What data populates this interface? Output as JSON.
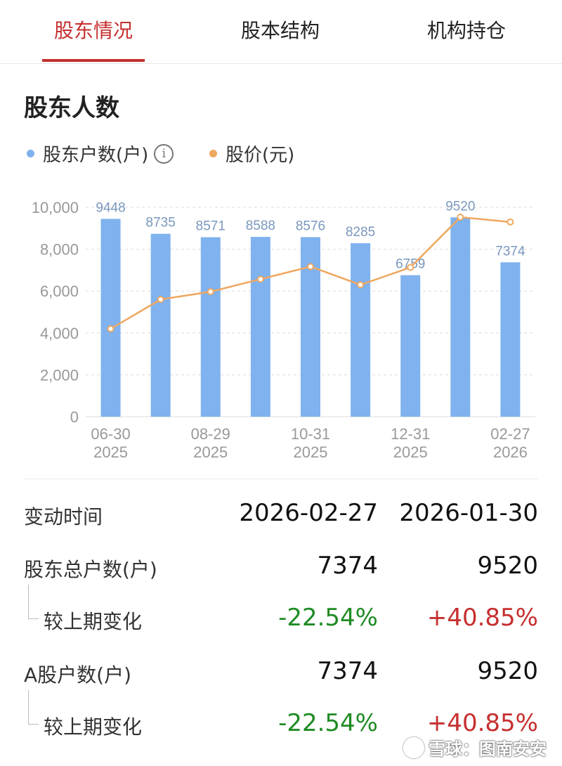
{
  "tabs": [
    {
      "label": "股东情况",
      "active": true
    },
    {
      "label": "股本结构",
      "active": false
    },
    {
      "label": "机构持仓",
      "active": false
    }
  ],
  "section_title": "股东人数",
  "legend": {
    "holders_label": "股东户数(户)",
    "price_label": "股价(元)",
    "info_icon": "info-icon",
    "info_glyph": "i"
  },
  "colors": {
    "accent_red": "#c62f2f",
    "bar_blue": "#7fb2ee",
    "line_orange": "#efa761",
    "negative_green": "#1f8b24"
  },
  "chart_data": {
    "type": "bar",
    "x_tick_labels": [
      {
        "date": "06-30",
        "year": "2025"
      },
      {
        "date": "08-29",
        "year": "2025"
      },
      {
        "date": "10-31",
        "year": "2025"
      },
      {
        "date": "12-31",
        "year": "2025"
      },
      {
        "date": "02-27",
        "year": "2026"
      }
    ],
    "y_ticks": [
      "10,000",
      "8,000",
      "6,000",
      "4,000",
      "2,000",
      "0"
    ],
    "ylim": [
      0,
      10000
    ],
    "grid": true,
    "series": [
      {
        "name": "股东户数(户)",
        "type": "bar",
        "values": [
          9448,
          8735,
          8571,
          8588,
          8576,
          8285,
          6759,
          9520,
          7374
        ]
      },
      {
        "name": "股价(元)",
        "type": "line",
        "values": [
          4200,
          5600,
          5970,
          6570,
          7170,
          6300,
          7130,
          9530,
          9300
        ]
      }
    ]
  },
  "table": {
    "header": {
      "label": "变动时间",
      "values": [
        "2026-02-27",
        "2026-01-30"
      ]
    },
    "rows": [
      {
        "label": "股东总户数(户)",
        "values": [
          "7374",
          "9520"
        ]
      },
      {
        "label": "较上期变化",
        "values": [
          "-22.54%",
          "+40.85%"
        ]
      },
      {
        "label": "A股户数(户)",
        "values": [
          "7374",
          "9520"
        ]
      },
      {
        "label": "较上期变化",
        "values": [
          "-22.54%",
          "+40.85%"
        ]
      }
    ]
  },
  "watermark": {
    "text": "雪球：图南安安",
    "logo": "snowball-logo-icon"
  }
}
